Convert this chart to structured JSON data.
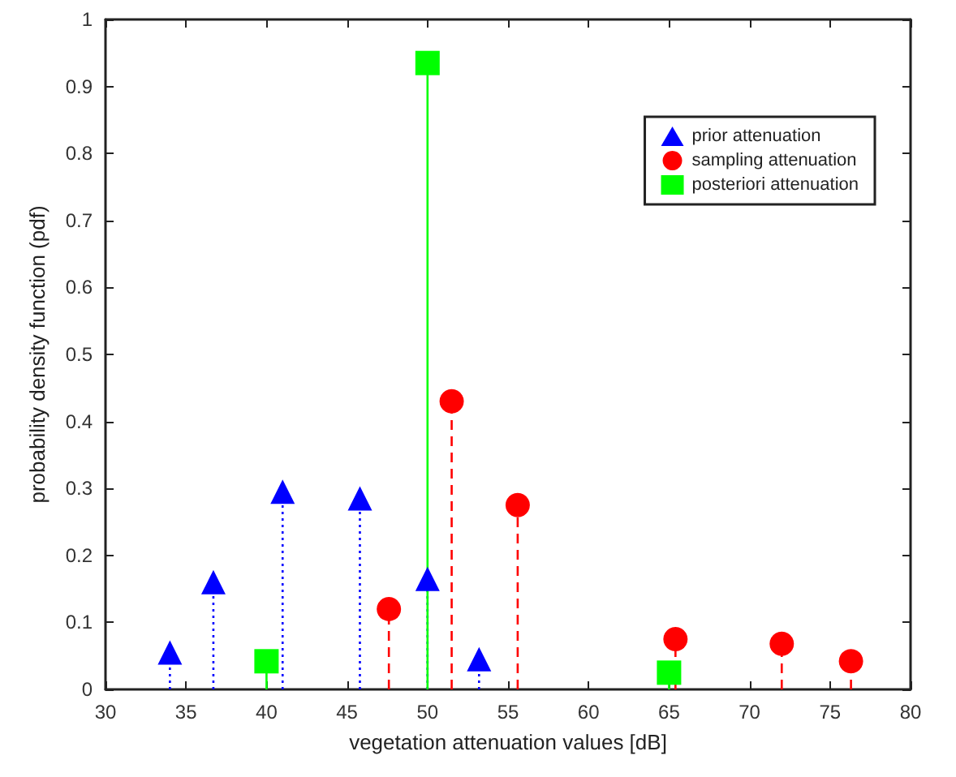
{
  "chart_data": {
    "type": "lollipop",
    "xlabel": "vegetation attenuation values [dB]",
    "ylabel": "probability density function (pdf)",
    "xlim": [
      30,
      80
    ],
    "xticks": [
      30,
      35,
      40,
      45,
      50,
      55,
      60,
      65,
      70,
      75,
      80
    ],
    "ylim": [
      0,
      1
    ],
    "yticks": [
      0,
      0.1,
      0.2,
      0.3,
      0.4,
      0.5,
      0.6,
      0.7,
      0.8,
      0.9,
      1
    ],
    "grid": false,
    "legend": "top right",
    "series": [
      {
        "name": "prior attenuation",
        "color": "#0000ff",
        "marker": "triangle",
        "line_style": "dotted",
        "x": [
          34,
          36.7,
          41,
          45.8,
          50,
          53.2
        ],
        "values": [
          0.055,
          0.16,
          0.295,
          0.285,
          0.165,
          0.045
        ]
      },
      {
        "name": "sampling attenuation",
        "color": "#ff0000",
        "marker": "circle",
        "line_style": "dashed",
        "x": [
          47.6,
          51.5,
          55.6,
          65.4,
          72,
          76.3
        ],
        "values": [
          0.12,
          0.43,
          0.275,
          0.075,
          0.068,
          0.042
        ]
      },
      {
        "name": "posteriori attenuation",
        "color": "#00ff00",
        "marker": "square",
        "line_style": "solid",
        "x": [
          40,
          50,
          65
        ],
        "values": [
          0.042,
          0.935,
          0.025
        ]
      }
    ]
  }
}
